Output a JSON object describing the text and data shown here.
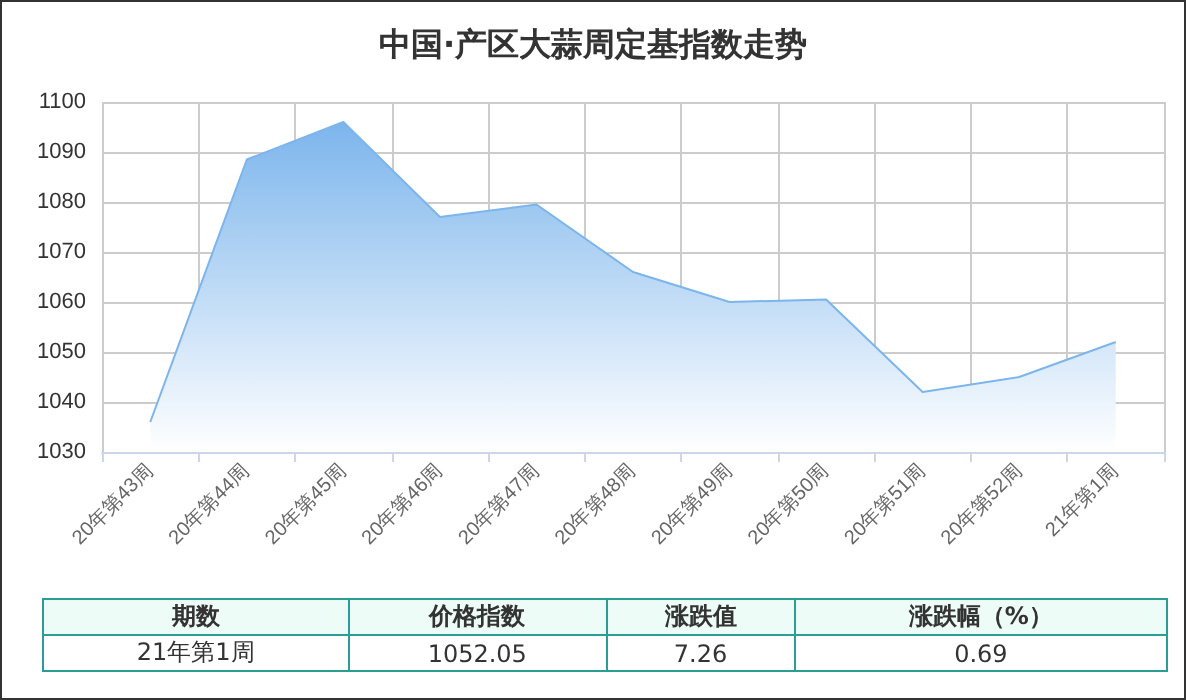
{
  "chart_data": {
    "type": "area",
    "title": "中国·产区大蒜周定基指数走势",
    "categories": [
      "20年第43周",
      "20年第44周",
      "20年第45周",
      "20年第46周",
      "20年第47周",
      "20年第48周",
      "20年第49周",
      "20年第50周",
      "20年第51周",
      "20年第52周",
      "21年第1周"
    ],
    "values": [
      1036,
      1088.5,
      1096,
      1077,
      1079.5,
      1066,
      1060,
      1060.5,
      1042,
      1045,
      1052
    ],
    "color": "#7cb5ec",
    "ylim": [
      1030,
      1100
    ],
    "yticks": [
      1030,
      1040,
      1050,
      1060,
      1070,
      1080,
      1090,
      1100
    ],
    "grid": true,
    "annotations": [
      "期数",
      "价格指数",
      "涨跌值",
      "涨跌幅（%）",
      "21年第1周",
      "1052.05",
      "7.26",
      "0.69"
    ]
  }
}
